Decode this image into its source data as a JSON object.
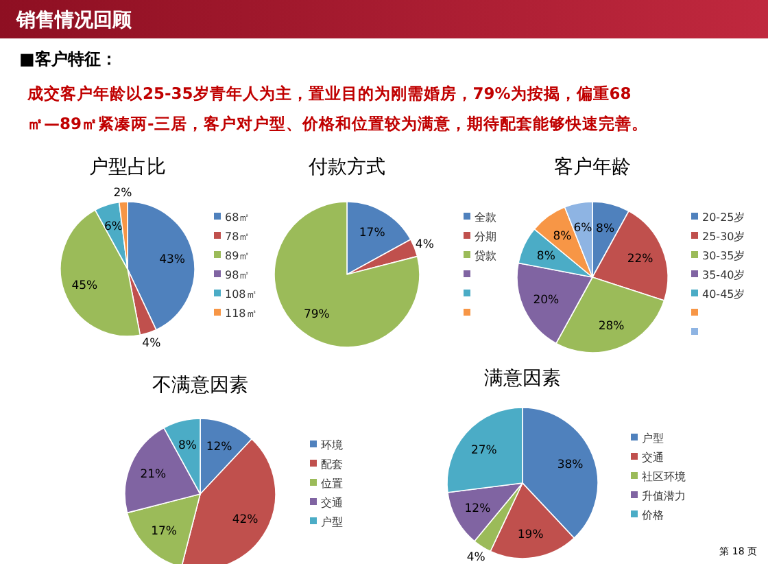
{
  "chart_data": [
    {
      "type": "other",
      "title": "销售情况回顾",
      "subtitle": "■客户特征：",
      "annotations": [
        "成交客户年龄以25-35岁青年人为主，置业目的为刚需婚房，79%为按揭，偏重68",
        "㎡—89㎡紧凑两-三居，客户对户型、价格和位置较为满意，期待配套能够快速完善。",
        "第 18 页"
      ]
    },
    {
      "type": "pie",
      "title": "户型占比",
      "categories": [
        "68㎡",
        "78㎡",
        "89㎡",
        "98㎡",
        "108㎡",
        "118㎡"
      ],
      "values": [
        43,
        4,
        45,
        0,
        6,
        2
      ],
      "value_labels": [
        "43%",
        "4%",
        "45%",
        null,
        "6%",
        "2%"
      ],
      "colors": [
        "#4f81bd",
        "#c0504d",
        "#9bbb59",
        "#8064a2",
        "#4bacc6",
        "#f79646"
      ],
      "legend": "right"
    },
    {
      "type": "pie",
      "title": "付款方式",
      "categories": [
        "全款",
        "分期",
        "贷款",
        null,
        null,
        null
      ],
      "values": [
        17,
        4,
        79,
        0,
        0,
        0
      ],
      "value_labels": [
        "17%",
        "4%",
        "79%",
        null,
        null,
        null
      ],
      "colors": [
        "#4f81bd",
        "#c0504d",
        "#9bbb59",
        "#8064a2",
        "#4bacc6",
        "#f79646"
      ],
      "legend": "right"
    },
    {
      "type": "pie",
      "title": "客户年龄",
      "categories": [
        "20-25岁",
        "25-30岁",
        "30-35岁",
        "35-40岁",
        "40-45岁",
        null,
        null
      ],
      "values": [
        8,
        22,
        28,
        20,
        8,
        8,
        6
      ],
      "value_labels": [
        "8%",
        "22%",
        "28%",
        "20%",
        "8%",
        "8%",
        "6%"
      ],
      "colors": [
        "#4f81bd",
        "#c0504d",
        "#9bbb59",
        "#8064a2",
        "#4bacc6",
        "#f79646",
        "#8eb4e3"
      ],
      "legend": "right"
    },
    {
      "type": "pie",
      "title": "不满意因素",
      "categories": [
        "环境",
        "配套",
        "位置",
        "交通",
        "户型"
      ],
      "values": [
        12,
        42,
        17,
        21,
        8
      ],
      "value_labels": [
        "12%",
        "42%",
        "17%",
        "21%",
        "8%"
      ],
      "colors": [
        "#4f81bd",
        "#c0504d",
        "#9bbb59",
        "#8064a2",
        "#4bacc6"
      ],
      "legend": "right"
    },
    {
      "type": "pie",
      "title": "满意因素",
      "categories": [
        "户型",
        "交通",
        "社区环境",
        "升值潜力",
        "价格"
      ],
      "values": [
        38,
        19,
        4,
        12,
        27
      ],
      "value_labels": [
        "38%",
        "19%",
        "4%",
        "12%",
        "27%"
      ],
      "colors": [
        "#4f81bd",
        "#c0504d",
        "#9bbb59",
        "#8064a2",
        "#4bacc6"
      ],
      "legend": "right"
    }
  ]
}
